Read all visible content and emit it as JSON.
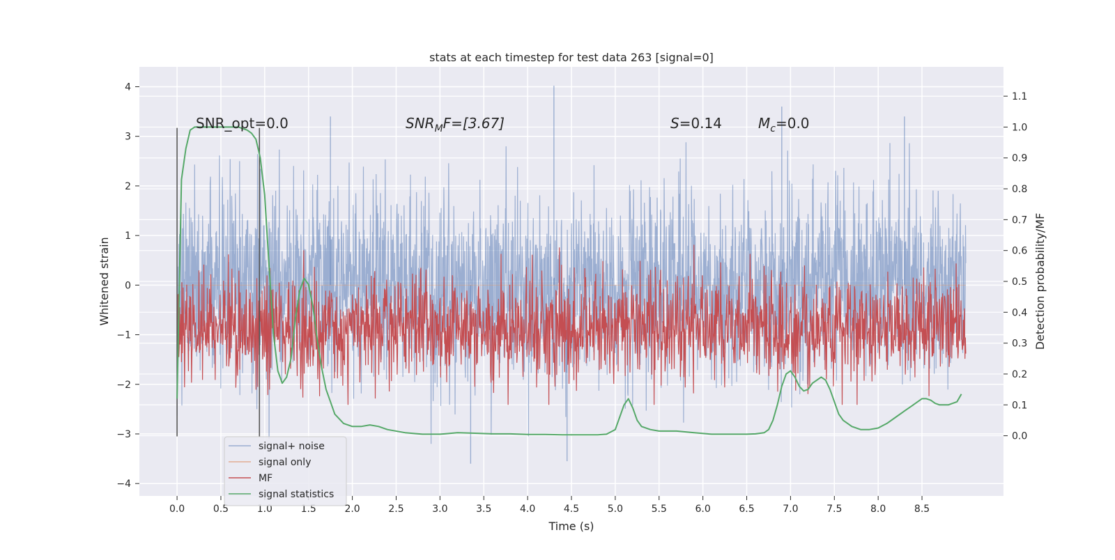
{
  "chart_data": {
    "type": "line",
    "title": "stats at each timestep for test data 263 [signal=0]",
    "xlabel": "Time (s)",
    "ylabel": "Whitened strain",
    "y2label": "Detection probability/MF",
    "xlim": [
      -0.43,
      9.43
    ],
    "ylim": [
      -4.25,
      4.4
    ],
    "y2lim": [
      -0.195,
      1.195
    ],
    "x_ticks": [
      0.0,
      0.5,
      1.0,
      1.5,
      2.0,
      2.5,
      3.0,
      3.5,
      4.0,
      4.5,
      5.0,
      5.5,
      6.0,
      6.5,
      7.0,
      7.5,
      8.0,
      8.5
    ],
    "x_tick_labels": [
      "0.0",
      "0.5",
      "1.0",
      "1.5",
      "2.0",
      "2.5",
      "3.0",
      "3.5",
      "4.0",
      "4.5",
      "5.0",
      "5.5",
      "6.0",
      "6.5",
      "7.0",
      "7.5",
      "8.0",
      "8.5"
    ],
    "y_ticks": [
      4,
      3,
      2,
      1,
      0,
      -1,
      -2,
      -3,
      -4
    ],
    "y_tick_labels": [
      "4",
      "3",
      "2",
      "1",
      "0",
      "−1",
      "−2",
      "−3",
      "−4"
    ],
    "y2_ticks": [
      1.1,
      1.0,
      0.9,
      0.8,
      0.7,
      0.6,
      0.5,
      0.4,
      0.3,
      0.2,
      0.1,
      0.0
    ],
    "y2_tick_labels": [
      "1.1",
      "1.0",
      "0.9",
      "0.8",
      "0.7",
      "0.6",
      "0.5",
      "0.4",
      "0.3",
      "0.2",
      "0.1",
      "0.0"
    ],
    "annotations": {
      "snr_opt": "SNR_opt=0.0",
      "snr_mf_prefix": "SNR",
      "snr_mf_sub": "M",
      "snr_mf_suffix": "F=[3.67]",
      "s_prefix": "S",
      "s_value": "=0.14",
      "mc_prefix": "M",
      "mc_sub": "c",
      "mc_value": "=0.0"
    },
    "vlines": [
      0.0,
      0.94
    ],
    "vline_range": [
      -3.05,
      3.17
    ],
    "legend": {
      "placement": "lower-left",
      "entries": [
        "signal+ noise",
        "signal only",
        "MF",
        "signal statistics"
      ]
    },
    "colors": {
      "noise": "#4c72b0",
      "signal": "#dd8452",
      "mf": "#c44e52",
      "stats": "#55a868",
      "background": "#eaeaf2",
      "grid": "#ffffff",
      "vline": "#555555"
    },
    "series": [
      {
        "name": "signal+ noise",
        "axis": "left",
        "x_range": [
          0.0,
          9.0
        ],
        "envelope_mean": 0.0,
        "typical_max": 1.4,
        "typical_min": -1.5,
        "peak_max": 4.02,
        "peak_min": -3.6
      },
      {
        "name": "signal only",
        "axis": "left",
        "x": [
          0.0,
          9.0
        ],
        "y": [
          0.0,
          0.0
        ]
      },
      {
        "name": "MF",
        "axis": "right",
        "x_range": [
          0.0,
          9.0
        ],
        "mean": 0.35,
        "range": [
          0.1,
          0.64
        ]
      },
      {
        "name": "signal statistics",
        "axis": "right",
        "x": [
          0.0,
          0.05,
          0.1,
          0.15,
          0.2,
          0.3,
          0.4,
          0.5,
          0.6,
          0.7,
          0.8,
          0.85,
          0.9,
          0.95,
          1.0,
          1.05,
          1.1,
          1.15,
          1.2,
          1.25,
          1.3,
          1.35,
          1.4,
          1.45,
          1.5,
          1.55,
          1.6,
          1.65,
          1.7,
          1.75,
          1.8,
          1.9,
          2.0,
          2.1,
          2.2,
          2.3,
          2.4,
          2.6,
          2.8,
          3.0,
          3.2,
          3.4,
          3.6,
          3.8,
          4.0,
          4.2,
          4.4,
          4.6,
          4.8,
          4.9,
          5.0,
          5.05,
          5.1,
          5.15,
          5.2,
          5.25,
          5.3,
          5.4,
          5.5,
          5.7,
          5.9,
          6.1,
          6.3,
          6.5,
          6.6,
          6.7,
          6.75,
          6.8,
          6.85,
          6.9,
          6.95,
          7.0,
          7.05,
          7.1,
          7.15,
          7.2,
          7.25,
          7.3,
          7.35,
          7.4,
          7.45,
          7.5,
          7.55,
          7.6,
          7.7,
          7.8,
          7.9,
          8.0,
          8.1,
          8.2,
          8.3,
          8.4,
          8.45,
          8.5,
          8.55,
          8.6,
          8.65,
          8.7,
          8.8,
          8.9,
          8.95
        ],
        "y": [
          0.12,
          0.83,
          0.93,
          0.99,
          1.0,
          1.0,
          1.0,
          1.0,
          1.0,
          1.0,
          0.99,
          0.98,
          0.96,
          0.9,
          0.78,
          0.55,
          0.33,
          0.21,
          0.17,
          0.19,
          0.25,
          0.38,
          0.47,
          0.51,
          0.49,
          0.42,
          0.31,
          0.22,
          0.15,
          0.11,
          0.07,
          0.04,
          0.03,
          0.03,
          0.035,
          0.03,
          0.02,
          0.01,
          0.005,
          0.005,
          0.01,
          0.008,
          0.006,
          0.006,
          0.004,
          0.004,
          0.003,
          0.003,
          0.003,
          0.005,
          0.02,
          0.06,
          0.1,
          0.12,
          0.09,
          0.05,
          0.03,
          0.02,
          0.015,
          0.015,
          0.01,
          0.005,
          0.005,
          0.005,
          0.006,
          0.01,
          0.02,
          0.05,
          0.1,
          0.16,
          0.2,
          0.21,
          0.19,
          0.16,
          0.145,
          0.15,
          0.17,
          0.18,
          0.19,
          0.18,
          0.15,
          0.11,
          0.07,
          0.05,
          0.03,
          0.02,
          0.02,
          0.025,
          0.04,
          0.06,
          0.08,
          0.1,
          0.11,
          0.12,
          0.12,
          0.115,
          0.105,
          0.1,
          0.1,
          0.11,
          0.135
        ]
      }
    ]
  }
}
